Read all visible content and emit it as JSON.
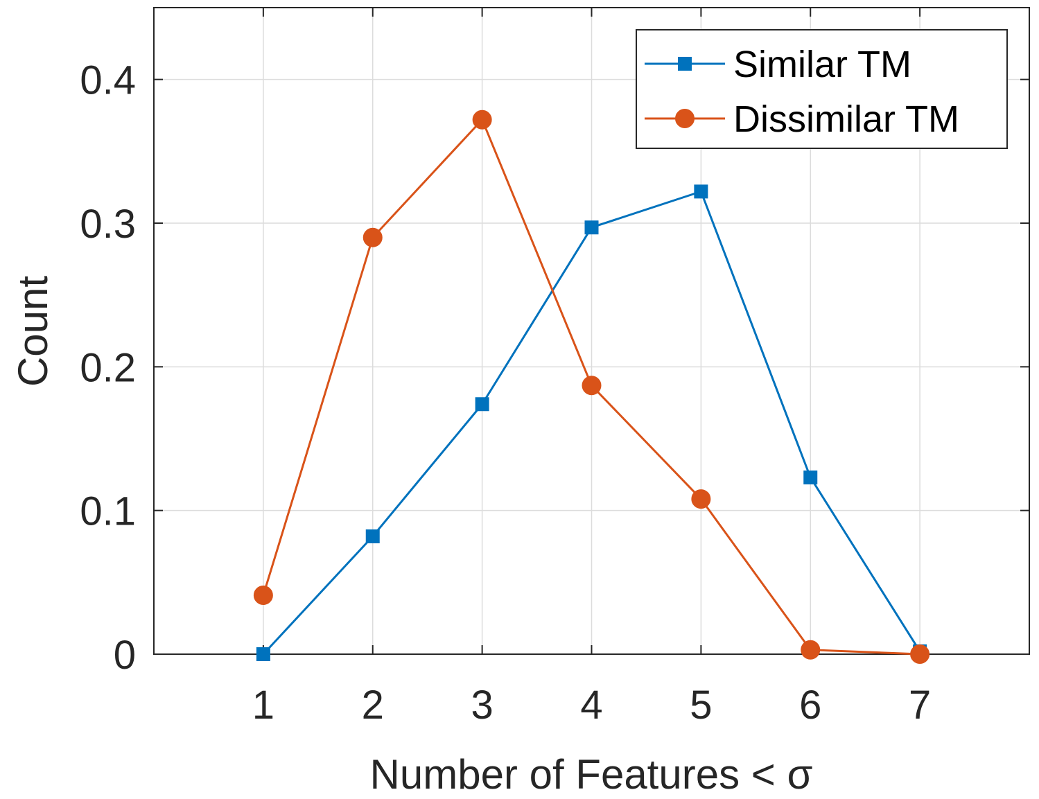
{
  "chart_data": {
    "type": "line",
    "x": [
      1,
      2,
      3,
      4,
      5,
      6,
      7
    ],
    "xlim": [
      0,
      8
    ],
    "ylim": [
      0,
      0.45
    ],
    "xticks": [
      "1",
      "2",
      "3",
      "4",
      "5",
      "6",
      "7"
    ],
    "yticks": [
      "0",
      "0.1",
      "0.2",
      "0.3",
      "0.4"
    ],
    "xlabel": "Number of Features < σ",
    "ylabel": "Count",
    "grid": true,
    "legend_position": "top-right",
    "series": [
      {
        "name": "Similar TM",
        "marker": "square",
        "color": "#0072BD",
        "values": [
          0.0,
          0.082,
          0.174,
          0.297,
          0.322,
          0.123,
          0.002
        ]
      },
      {
        "name": "Dissimilar TM",
        "marker": "circle",
        "color": "#D95319",
        "values": [
          0.041,
          0.29,
          0.372,
          0.187,
          0.108,
          0.003,
          0.0
        ]
      }
    ]
  }
}
